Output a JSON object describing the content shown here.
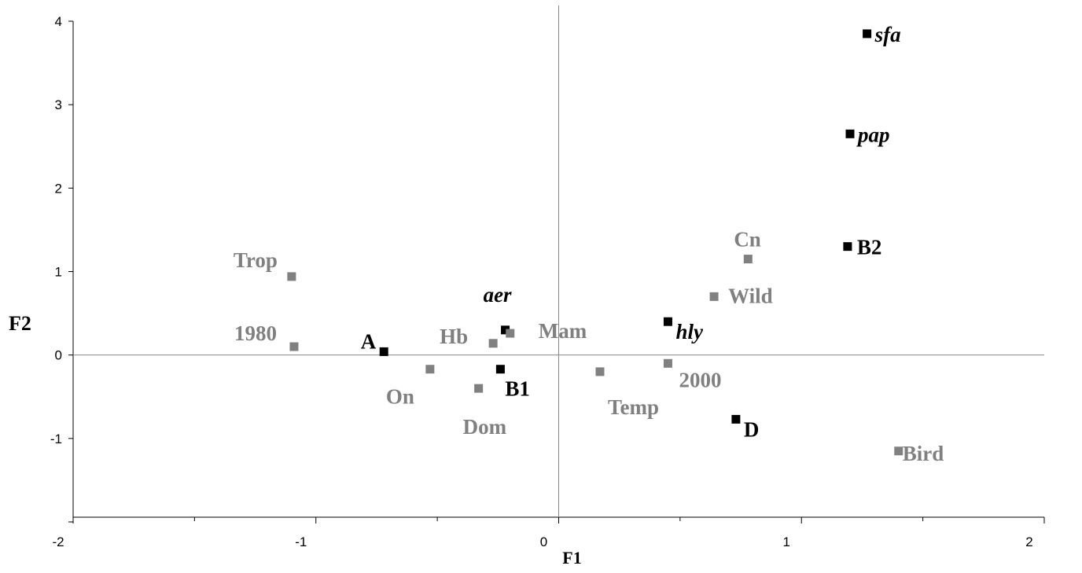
{
  "chart_data": {
    "type": "scatter",
    "title": "",
    "xlabel": "F1",
    "ylabel": "F2",
    "xlim": [
      -2,
      2
    ],
    "ylim": [
      -2,
      4
    ],
    "x_ticks": [
      "-2",
      "-1",
      "0",
      "1",
      "2"
    ],
    "y_ticks": [
      "-1",
      "0",
      "1",
      "2",
      "3",
      "4"
    ],
    "grid": false,
    "colors": {
      "variable": "#000000",
      "category": "#808080"
    },
    "series": [
      {
        "kind": "variable",
        "points": [
          {
            "label": "sfa",
            "x": 1.27,
            "y": 3.85,
            "italic": true
          },
          {
            "label": "pap",
            "x": 1.2,
            "y": 2.65,
            "italic": true
          },
          {
            "label": "B2",
            "x": 1.19,
            "y": 1.3,
            "italic": false
          },
          {
            "label": "hly",
            "x": 0.45,
            "y": 0.4,
            "italic": true
          },
          {
            "label": "aer",
            "x": -0.22,
            "y": 0.3,
            "italic": true
          },
          {
            "label": "A",
            "x": -0.72,
            "y": 0.04,
            "italic": false
          },
          {
            "label": "B1",
            "x": -0.24,
            "y": -0.17,
            "italic": false
          },
          {
            "label": "D",
            "x": 0.73,
            "y": -0.77,
            "italic": false
          }
        ]
      },
      {
        "kind": "category",
        "points": [
          {
            "label": "Trop",
            "x": -1.1,
            "y": 0.94
          },
          {
            "label": "1980",
            "x": -1.09,
            "y": 0.1
          },
          {
            "label": "Hb",
            "x": -0.27,
            "y": 0.14
          },
          {
            "label": "Mam",
            "x": -0.2,
            "y": 0.26
          },
          {
            "label": "On",
            "x": -0.53,
            "y": -0.17
          },
          {
            "label": "Dom",
            "x": -0.33,
            "y": -0.4
          },
          {
            "label": "Temp",
            "x": 0.17,
            "y": -0.2
          },
          {
            "label": "2000",
            "x": 0.45,
            "y": -0.1
          },
          {
            "label": "Cn",
            "x": 0.78,
            "y": 1.15
          },
          {
            "label": "Wild",
            "x": 0.64,
            "y": 0.7
          },
          {
            "label": "Bird",
            "x": 1.4,
            "y": -1.15
          }
        ]
      }
    ]
  }
}
